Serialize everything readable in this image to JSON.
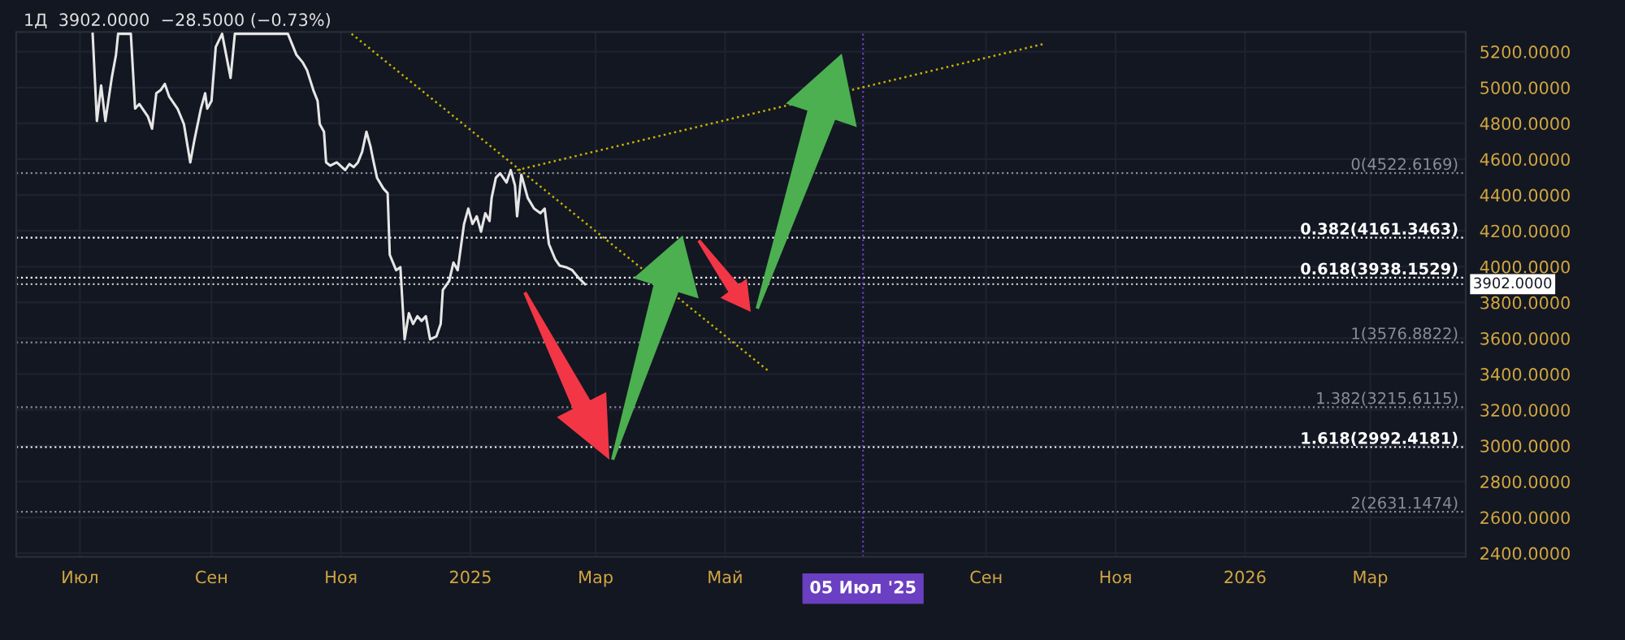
{
  "chart_data": {
    "type": "line",
    "title": "1Д  3902.0000  −28.5000 (−0.73%)",
    "series": [
      {
        "color": "#e6e6e6",
        "line_style": "solid",
        "x": [
          "2024-07-07",
          "2024-07-09",
          "2024-07-11",
          "2024-07-13",
          "2024-07-16",
          "2024-07-18",
          "2024-07-19",
          "2024-07-25",
          "2024-07-27",
          "2024-07-29",
          "2024-08-02",
          "2024-08-04",
          "2024-08-06",
          "2024-08-08",
          "2024-08-10",
          "2024-08-12",
          "2024-08-16",
          "2024-08-19",
          "2024-08-22",
          "2024-08-24",
          "2024-08-27",
          "2024-08-29",
          "2024-08-30",
          "2024-09-01",
          "2024-09-03",
          "2024-09-06",
          "2024-09-10",
          "2024-09-12",
          "2024-09-22",
          "2024-10-07",
          "2024-10-11",
          "2024-10-14",
          "2024-10-16",
          "2024-10-19",
          "2024-10-21",
          "2024-10-22",
          "2024-10-24",
          "2024-10-25",
          "2024-10-27",
          "2024-10-30",
          "2024-11-03",
          "2024-11-05",
          "2024-11-07",
          "2024-11-09",
          "2024-11-11",
          "2024-11-13",
          "2024-11-15",
          "2024-11-16",
          "2024-11-18",
          "2024-11-21",
          "2024-11-23",
          "2024-11-24",
          "2024-11-27",
          "2024-11-29",
          "2024-12-01",
          "2024-12-03",
          "2024-12-05",
          "2024-12-07",
          "2024-12-09",
          "2024-12-11",
          "2024-12-13",
          "2024-12-16",
          "2024-12-18",
          "2024-12-19",
          "2024-12-22",
          "2024-12-24",
          "2024-12-26",
          "2024-12-29",
          "2024-12-31",
          "2025-01-02",
          "2025-01-04",
          "2025-01-06",
          "2025-01-08",
          "2025-01-10",
          "2025-01-11",
          "2025-01-13",
          "2025-01-15",
          "2025-01-18",
          "2025-01-20",
          "2025-01-22",
          "2025-01-23",
          "2025-01-25",
          "2025-01-28",
          "2025-01-31",
          "2025-02-03",
          "2025-02-05",
          "2025-02-07",
          "2025-02-10",
          "2025-02-12",
          "2025-02-15",
          "2025-02-18",
          "2025-02-21",
          "2025-02-24"
        ],
        "values": [
          5300,
          4813,
          5011,
          4813,
          5054,
          5183,
          5300,
          5300,
          4882,
          4908,
          4839,
          4770,
          4968,
          4985,
          5020,
          4951,
          4882,
          4796,
          4582,
          4710,
          4882,
          4968,
          4882,
          4925,
          5226,
          5300,
          5054,
          5300,
          5300,
          5300,
          5183,
          5140,
          5097,
          4985,
          4925,
          4796,
          4753,
          4582,
          4564,
          4582,
          4539,
          4573,
          4556,
          4582,
          4642,
          4753,
          4667,
          4607,
          4496,
          4436,
          4410,
          4066,
          3980,
          3997,
          3594,
          3740,
          3680,
          3723,
          3697,
          3723,
          3594,
          3611,
          3680,
          3869,
          3920,
          4023,
          3980,
          4238,
          4324,
          4238,
          4281,
          4195,
          4298,
          4255,
          4384,
          4496,
          4521,
          4470,
          4539,
          4453,
          4281,
          4513,
          4384,
          4324,
          4298,
          4324,
          4126,
          4040,
          4006,
          3997,
          3980,
          3937,
          3902
        ]
      },
      {
        "color": "#c8b400",
        "line_style": "dotted",
        "x": [
          "2024-11-06",
          "2025-05-21"
        ],
        "values": [
          5300,
          3422
        ]
      },
      {
        "color": "#c8b400",
        "line_style": "dotted",
        "x": [
          "2025-01-23",
          "2025-09-28"
        ],
        "values": [
          4539,
          5243
        ]
      }
    ],
    "xlim": [
      "2024-06-01",
      "2026-04-15"
    ],
    "xticks": [
      {
        "value": "2024-07-01",
        "label": "Июл"
      },
      {
        "value": "2024-09-01",
        "label": "Сен"
      },
      {
        "value": "2024-11-01",
        "label": "Ноя"
      },
      {
        "value": "2025-01-01",
        "label": "2025"
      },
      {
        "value": "2025-03-01",
        "label": "Мар"
      },
      {
        "value": "2025-05-01",
        "label": "Май"
      },
      {
        "value": "2025-09-01",
        "label": "Сен"
      },
      {
        "value": "2025-11-01",
        "label": "Ноя"
      },
      {
        "value": "2026-01-01",
        "label": "2026"
      },
      {
        "value": "2026-03-01",
        "label": "Мар"
      }
    ],
    "ylim": [
      2380,
      5310
    ],
    "yticks": [
      {
        "value": 2400,
        "label": "2400.0000"
      },
      {
        "value": 2600,
        "label": "2600.0000"
      },
      {
        "value": 2800,
        "label": "2800.0000"
      },
      {
        "value": 3000,
        "label": "3000.0000"
      },
      {
        "value": 3200,
        "label": "3200.0000"
      },
      {
        "value": 3400,
        "label": "3400.0000"
      },
      {
        "value": 3600,
        "label": "3600.0000"
      },
      {
        "value": 3800,
        "label": "3800.0000"
      },
      {
        "value": 4000,
        "label": "4000.0000"
      },
      {
        "value": 4200,
        "label": "4200.0000"
      },
      {
        "value": 4400,
        "label": "4400.0000"
      },
      {
        "value": 4600,
        "label": "4600.0000"
      },
      {
        "value": 4800,
        "label": "4800.0000"
      },
      {
        "value": 5000,
        "label": "5000.0000"
      },
      {
        "value": 5200,
        "label": "5200.0000"
      }
    ],
    "grid": true,
    "legend": false,
    "ref_lines": [
      {
        "axis": "y",
        "value": 4522.6169,
        "label": "0(4522.6169)",
        "color": "#8a8d96",
        "line_style": "dotted"
      },
      {
        "axis": "y",
        "value": 4161.3463,
        "label": "0.382(4161.3463)",
        "color": "#ffffff",
        "line_style": "dotted"
      },
      {
        "axis": "y",
        "value": 3938.1529,
        "label": "0.618(3938.1529)",
        "color": "#ffffff",
        "line_style": "dotted"
      },
      {
        "axis": "y",
        "value": 3902,
        "label": "3902.0000",
        "color": "#c0c0c0",
        "line_style": "dotted"
      },
      {
        "axis": "y",
        "value": 3576.8822,
        "label": "1(3576.8822)",
        "color": "#8a8d96",
        "line_style": "dotted"
      },
      {
        "axis": "y",
        "value": 3215.6115,
        "label": "1.382(3215.6115)",
        "color": "#8a8d96",
        "line_style": "dotted"
      },
      {
        "axis": "y",
        "value": 2992.4181,
        "label": "1.618(2992.4181)",
        "color": "#ffffff",
        "line_style": "dotted"
      },
      {
        "axis": "y",
        "value": 2631.1474,
        "label": "2(2631.1474)",
        "color": "#8a8d96",
        "line_style": "dotted"
      },
      {
        "axis": "x",
        "value": "2025-07-05",
        "label": "05 Июл '25",
        "color": "#6a3fc1",
        "line_style": "dotted"
      }
    ]
  }
}
